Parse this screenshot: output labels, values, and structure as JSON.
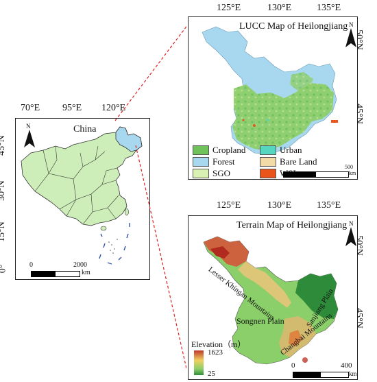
{
  "china_panel": {
    "title": "China",
    "x_ticks": [
      "70°E",
      "95°E",
      "120°E"
    ],
    "y_ticks": [
      "45°N",
      "30°N",
      "15°N",
      "0°"
    ],
    "north": "N",
    "scale_start": "0",
    "scale_end": "2000",
    "scale_unit": "km"
  },
  "lucc_panel": {
    "title": "LUCC Map of Heilongjiang",
    "x_ticks": [
      "125°E",
      "130°E",
      "135°E"
    ],
    "y_ticks": [
      "50°N",
      "45°N"
    ],
    "north": "N",
    "scale_end": "500",
    "scale_unit": "km",
    "legend": [
      {
        "label": "Cropland",
        "color": "#6fc15a"
      },
      {
        "label": "Urban",
        "color": "#55d6c0"
      },
      {
        "label": "Forest",
        "color": "#a8d8ef"
      },
      {
        "label": "Bare Land",
        "color": "#f3dba8"
      },
      {
        "label": "SGO",
        "color": "#d9f2b4"
      },
      {
        "label": "WSI",
        "color": "#e8541a"
      }
    ]
  },
  "terrain_panel": {
    "title": "Terrain Map of Heilongjiang",
    "x_ticks": [
      "125°E",
      "130°E",
      "135°E"
    ],
    "y_ticks": [
      "50°N",
      "45°N"
    ],
    "north": "N",
    "labels": [
      "Lesser Khingan Mountains",
      "Songnen Plain",
      "Sanjiang Plain",
      "Changbai Mountains"
    ],
    "elevation_title": "Elevation（m）",
    "elevation_max": "1623",
    "elevation_min": "25",
    "scale_start": "0",
    "scale_end": "400",
    "scale_unit": "km"
  }
}
